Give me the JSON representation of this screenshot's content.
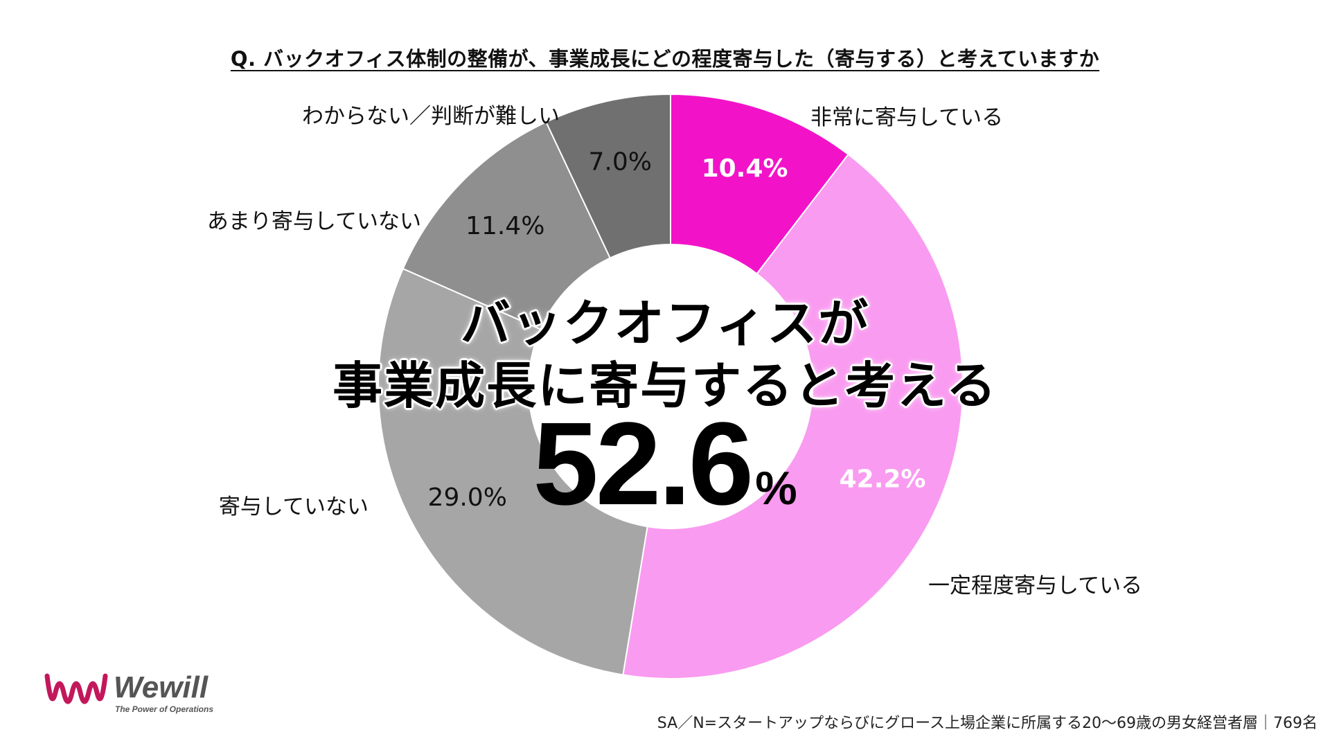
{
  "question": "Q.  バックオフィス体制の整備が、事業成長にどの程度寄与した（寄与する）と考えていますか",
  "headline": {
    "line1": "バックオフィスが",
    "line2": "事業成長に寄与すると考える",
    "value": "52.6",
    "unit": "%"
  },
  "logo": {
    "name": "Wewill",
    "tagline": "The Power of Operations",
    "color": "#c2185b"
  },
  "footnote": "SA／N=スタートアップならびにグロース上場企業に所属する20〜69歳の男女経営者層｜769名",
  "chart_data": {
    "type": "pie",
    "donut": true,
    "slices": [
      {
        "label": "非常に寄与している",
        "value": 10.4,
        "value_label": "10.4%",
        "color": "#f213c9",
        "value_text_color": "#ffffff"
      },
      {
        "label": "一定程度寄与している",
        "value": 42.2,
        "value_label": "42.2%",
        "color": "#f99bf0",
        "value_text_color": "#ffffff"
      },
      {
        "label": "寄与していない",
        "value": 29.0,
        "value_label": "29.0%",
        "color": "#a6a6a6",
        "value_text_color": "#111111"
      },
      {
        "label": "あまり寄与していない",
        "value": 11.4,
        "value_label": "11.4%",
        "color": "#8f8f8f",
        "value_text_color": "#111111"
      },
      {
        "label": "わからない／判断が難しい",
        "value": 7.0,
        "value_label": "7.0%",
        "color": "#707070",
        "value_text_color": "#111111"
      }
    ]
  }
}
